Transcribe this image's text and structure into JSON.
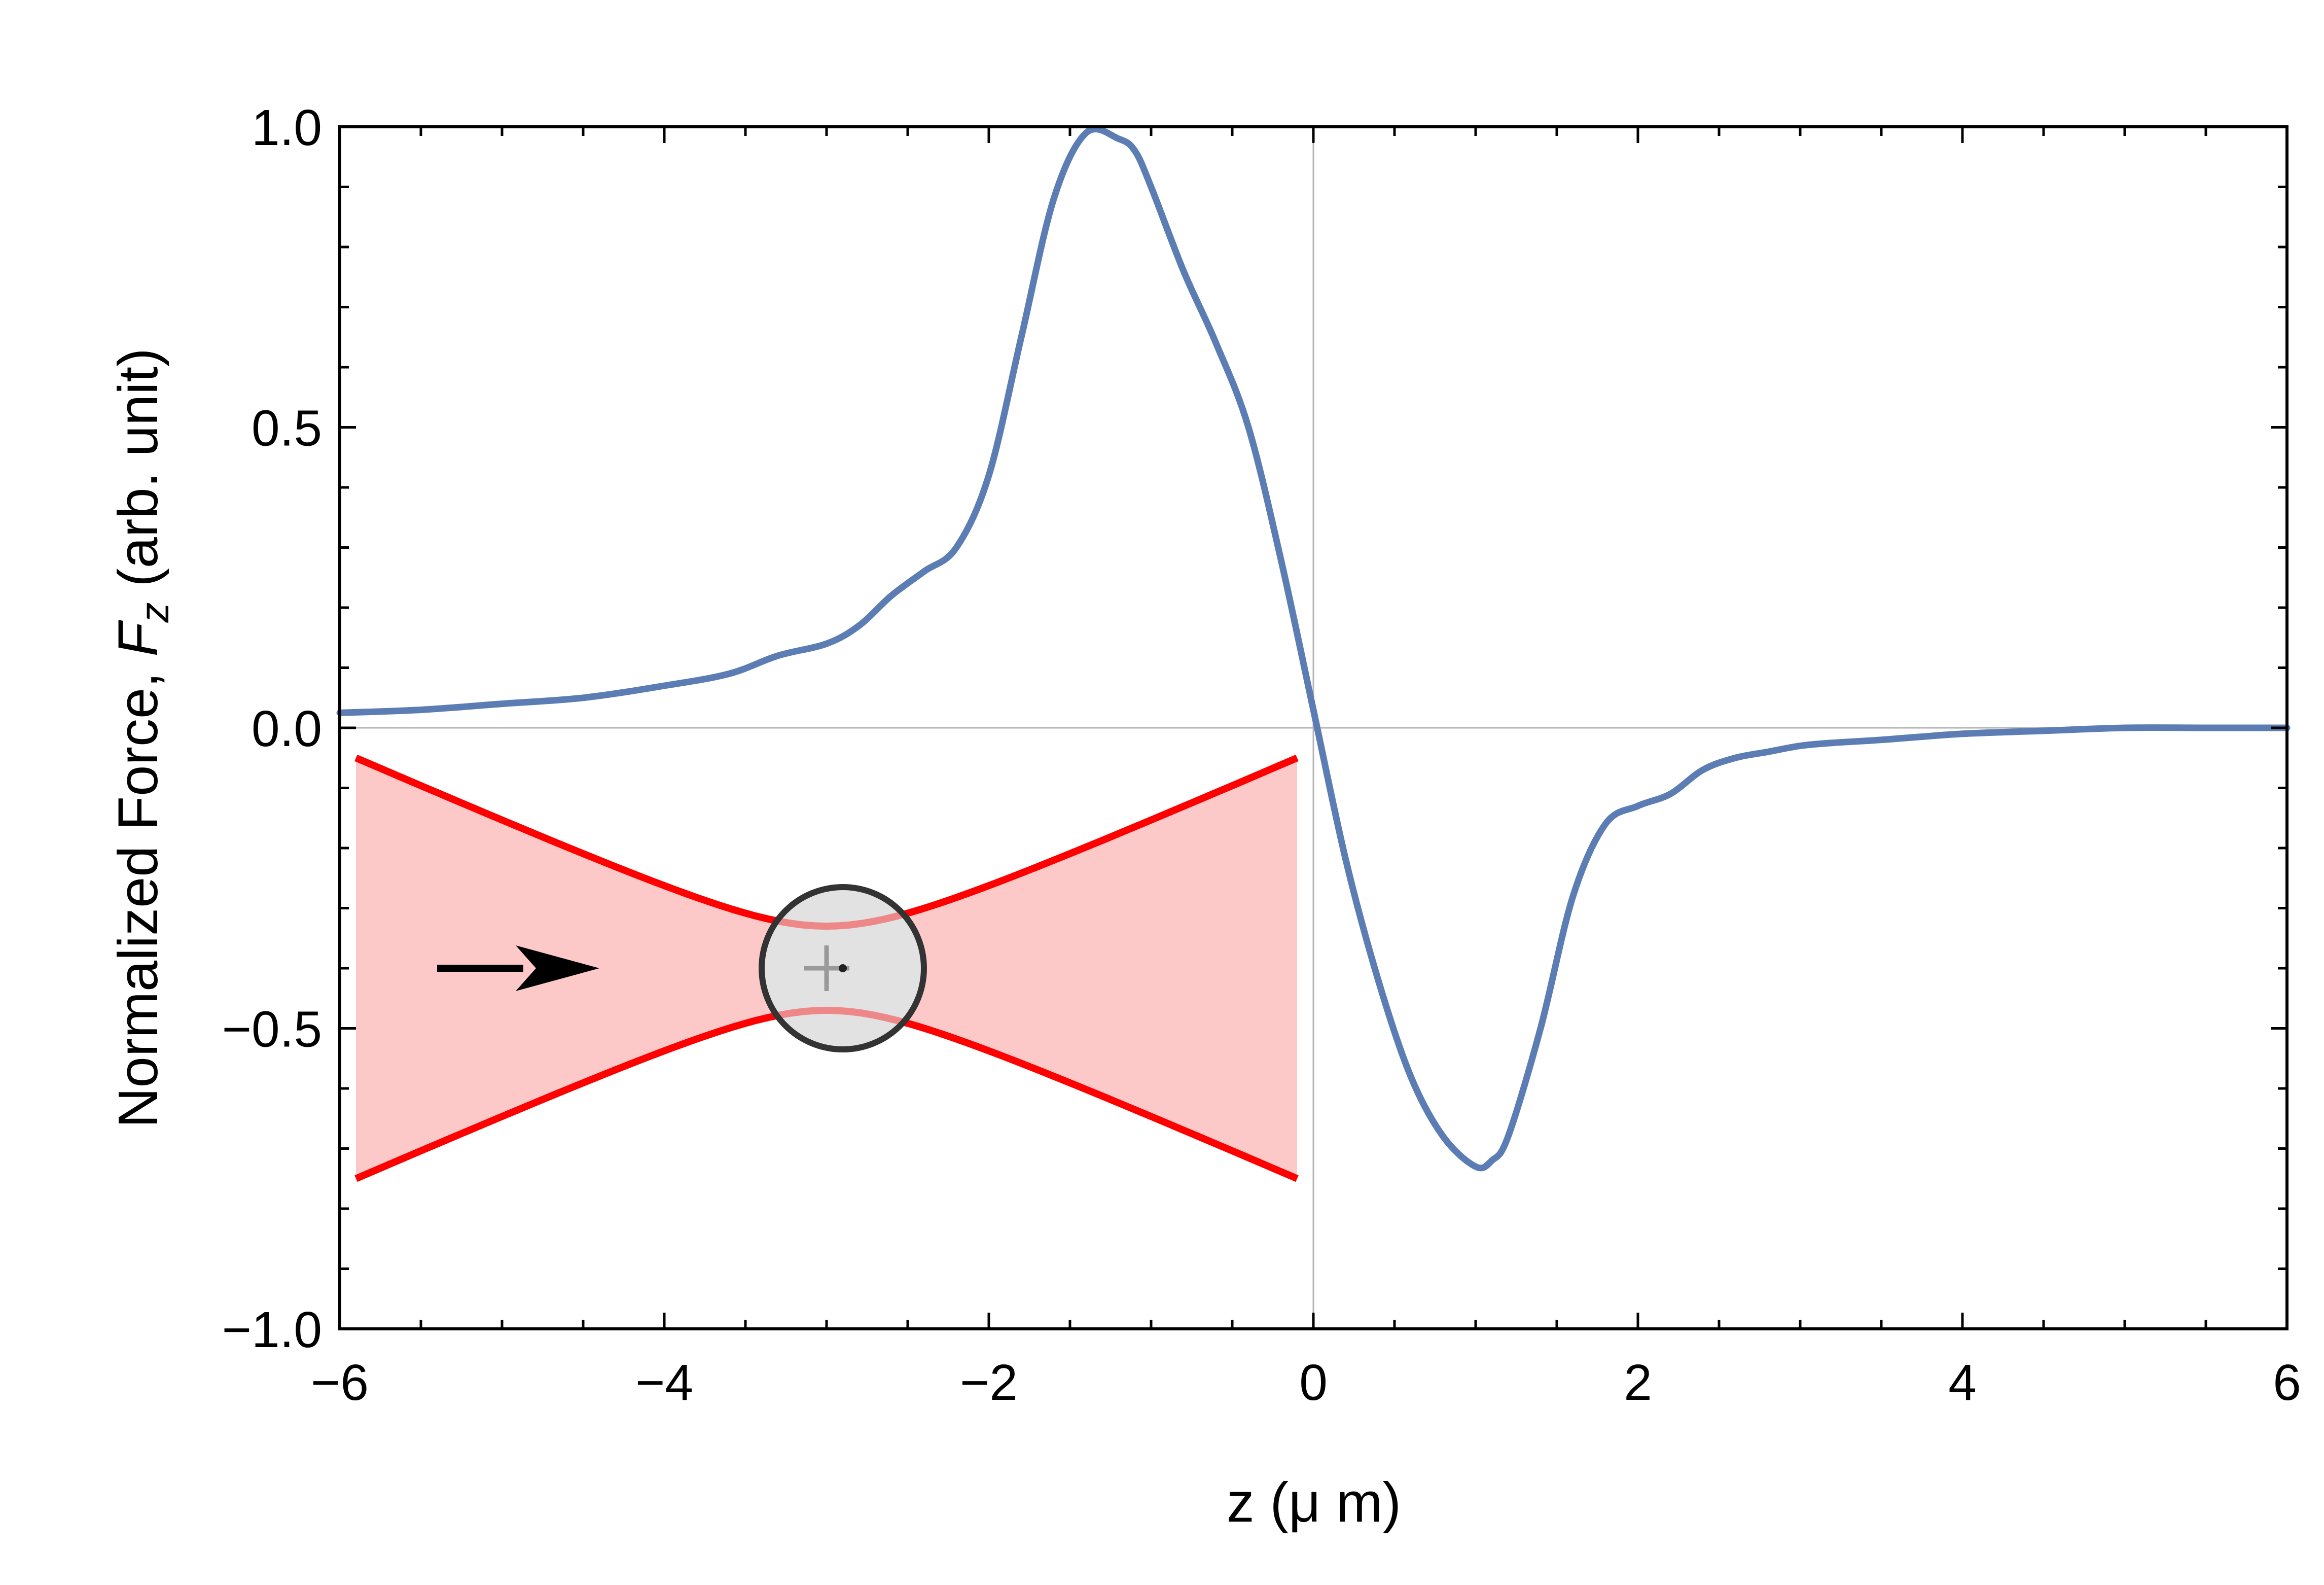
{
  "chart_data": {
    "type": "line",
    "title": "",
    "xlabel": "z (μ m)",
    "ylabel": {
      "prefix": "Normalized Force, ",
      "symbol": "F",
      "subscript": "z",
      "suffix": " (arb. unit)"
    },
    "xlim": [
      -6,
      6
    ],
    "ylim": [
      -1.0,
      1.0
    ],
    "x_ticks": [
      -6,
      -4,
      -2,
      0,
      2,
      4,
      6
    ],
    "x_tick_labels": [
      "−6",
      "−4",
      "−2",
      "0",
      "2",
      "4",
      "6"
    ],
    "y_ticks": [
      -1.0,
      -0.5,
      0.0,
      0.5,
      1.0
    ],
    "y_tick_labels": [
      "−1.0",
      "−0.5",
      "0.0",
      "0.5",
      "1.0"
    ],
    "grid": false,
    "zero_lines": true,
    "series": [
      {
        "color": "#5b7db4",
        "x": [
          -6.0,
          -5.5,
          -5.0,
          -4.5,
          -4.0,
          -3.6,
          -3.3,
          -3.0,
          -2.8,
          -2.6,
          -2.4,
          -2.2,
          -2.0,
          -1.8,
          -1.6,
          -1.4,
          -1.2,
          -1.1,
          -1.0,
          -0.8,
          -0.6,
          -0.4,
          -0.2,
          0.0,
          0.2,
          0.4,
          0.6,
          0.8,
          1.0,
          1.1,
          1.2,
          1.4,
          1.6,
          1.8,
          2.0,
          2.2,
          2.4,
          2.6,
          2.8,
          3.0,
          3.2,
          3.5,
          4.0,
          4.5,
          5.0,
          5.5,
          6.0
        ],
        "y": [
          0.025,
          0.03,
          0.04,
          0.05,
          0.07,
          0.09,
          0.12,
          0.14,
          0.17,
          0.22,
          0.26,
          0.3,
          0.42,
          0.65,
          0.88,
          0.99,
          0.98,
          0.96,
          0.9,
          0.76,
          0.64,
          0.5,
          0.28,
          0.03,
          -0.22,
          -0.42,
          -0.58,
          -0.68,
          -0.73,
          -0.72,
          -0.68,
          -0.5,
          -0.28,
          -0.16,
          -0.13,
          -0.11,
          -0.07,
          -0.05,
          -0.04,
          -0.03,
          -0.025,
          -0.02,
          -0.01,
          -0.005,
          0.0,
          0.0,
          0.0
        ]
      }
    ],
    "inset": {
      "beam_color": "#ff0000",
      "beam_fill": "#fcc8c8",
      "particle_fill": "#e2e2e2",
      "particle_stroke": "#333333",
      "arrow_color": "#000000",
      "beam_z": [
        -5.9,
        -0.1
      ],
      "beam_center_z": -3.0,
      "axis_y": -0.4,
      "half_width_edge": 0.35,
      "half_width_waist": 0.07,
      "particle_z": -2.9,
      "particle_radius_y": 0.135,
      "arrow_z": [
        -5.4,
        -4.4
      ]
    }
  }
}
